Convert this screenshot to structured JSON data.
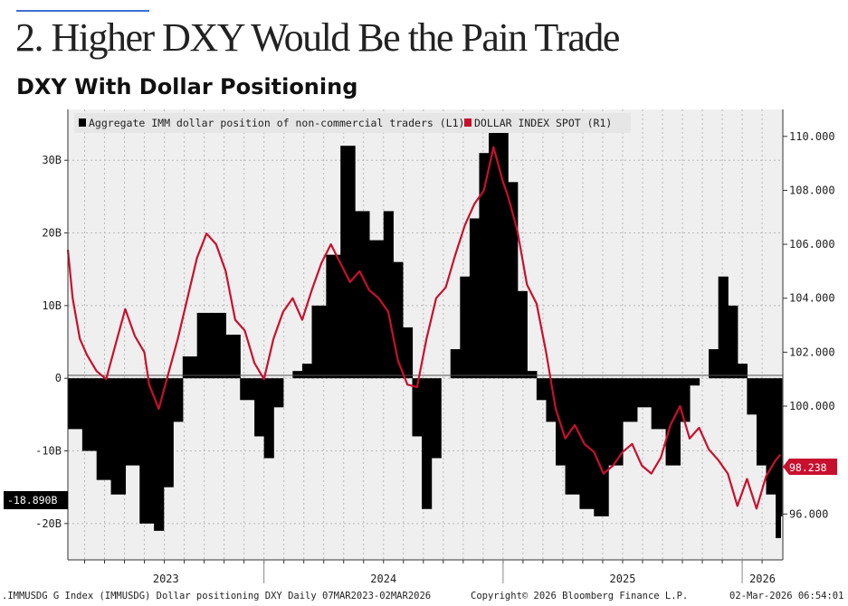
{
  "page": {
    "heading": "2. Higher DXY Would Be the Pain Trade",
    "subtitle": "DXY With Dollar Positioning"
  },
  "footer": {
    "left": ".IMMUSDG G Index (IMMUSDG) Dollar positioning DXY Daily 07MAR2023-02MAR2026",
    "copyright": "Copyright© 2026 Bloomberg Finance L.P.",
    "timestamp": "02-Mar-2026 06:54:01"
  },
  "colors": {
    "bars": "#000000",
    "line": "#c8102e",
    "background": "#efefef",
    "grid": "#b8b8b8"
  },
  "chart_data": {
    "type": "bar+line",
    "title": "DXY With Dollar Positioning",
    "x_range": [
      2023.18,
      2026.17
    ],
    "x_ticks": [
      "2023",
      "2024",
      "2025",
      "2026"
    ],
    "left_axis": {
      "range": [
        -25,
        37
      ],
      "ticks": [
        30,
        20,
        10,
        0,
        -10,
        -20
      ],
      "tick_labels": [
        "30B",
        "20B",
        "10B",
        "0",
        "-10B",
        "-20B"
      ]
    },
    "right_axis": {
      "range": [
        94.3,
        111.0
      ],
      "ticks": [
        110,
        108,
        106,
        104,
        102,
        100,
        96
      ],
      "tick_labels": [
        "110.000",
        "108.000",
        "106.000",
        "104.000",
        "102.000",
        "100.000",
        "96.000"
      ]
    },
    "legend": [
      {
        "name": "Aggregate IMM dollar position of non-commercial traders (L1)",
        "color": "#000000"
      },
      {
        "name": "DOLLAR INDEX SPOT (R1)",
        "color": "#c8102e"
      }
    ],
    "last_values": {
      "bars": -18.89,
      "bars_label": "-18.890B",
      "line": 98.238,
      "line_label": "98.238"
    },
    "series": [
      {
        "name": "Aggregate IMM dollar position of non-commercial traders (L1)",
        "axis": "left",
        "kind": "bar",
        "x": [
          2023.18,
          2023.24,
          2023.3,
          2023.36,
          2023.42,
          2023.48,
          2023.54,
          2023.58,
          2023.62,
          2023.66,
          2023.72,
          2023.78,
          2023.84,
          2023.9,
          2023.96,
          2024.0,
          2024.04,
          2024.08,
          2024.12,
          2024.16,
          2024.2,
          2024.26,
          2024.32,
          2024.38,
          2024.44,
          2024.5,
          2024.54,
          2024.58,
          2024.62,
          2024.66,
          2024.7,
          2024.74,
          2024.78,
          2024.82,
          2024.86,
          2024.9,
          2024.94,
          2024.98,
          2025.02,
          2025.06,
          2025.1,
          2025.14,
          2025.18,
          2025.22,
          2025.26,
          2025.32,
          2025.38,
          2025.44,
          2025.5,
          2025.56,
          2025.62,
          2025.68,
          2025.74,
          2025.78,
          2025.82,
          2025.86,
          2025.9,
          2025.94,
          2025.98,
          2026.02,
          2026.06,
          2026.1,
          2026.14,
          2026.16
        ],
        "values": [
          -7,
          -10,
          -14,
          -16,
          -12,
          -20,
          -21,
          -15,
          -6,
          3,
          9,
          9,
          6,
          -3,
          -8,
          -11,
          -4,
          0,
          1,
          2,
          10,
          17,
          32,
          23,
          19,
          23,
          16,
          7,
          -8,
          -18,
          -11,
          0,
          4,
          14,
          22,
          31,
          34,
          35,
          27,
          12,
          1,
          -3,
          -6,
          -12,
          -16,
          -18,
          -19,
          -12,
          -6,
          -4,
          -7,
          -12,
          -6,
          -1,
          0,
          4,
          14,
          10,
          2,
          -5,
          -12,
          -16,
          -22,
          -19
        ]
      },
      {
        "name": "DOLLAR INDEX SPOT (R1)",
        "axis": "right",
        "kind": "line",
        "x": [
          2023.18,
          2023.2,
          2023.23,
          2023.26,
          2023.3,
          2023.34,
          2023.38,
          2023.42,
          2023.46,
          2023.5,
          2023.52,
          2023.56,
          2023.6,
          2023.64,
          2023.68,
          2023.72,
          2023.76,
          2023.8,
          2023.84,
          2023.88,
          2023.92,
          2023.96,
          2024.0,
          2024.04,
          2024.08,
          2024.12,
          2024.16,
          2024.2,
          2024.24,
          2024.28,
          2024.32,
          2024.36,
          2024.4,
          2024.44,
          2024.48,
          2024.52,
          2024.56,
          2024.6,
          2024.64,
          2024.68,
          2024.72,
          2024.76,
          2024.8,
          2024.84,
          2024.88,
          2024.92,
          2024.96,
          2025.0,
          2025.02,
          2025.06,
          2025.1,
          2025.14,
          2025.18,
          2025.22,
          2025.26,
          2025.3,
          2025.34,
          2025.38,
          2025.42,
          2025.46,
          2025.5,
          2025.54,
          2025.58,
          2025.62,
          2025.66,
          2025.7,
          2025.74,
          2025.78,
          2025.82,
          2025.86,
          2025.9,
          2025.94,
          2025.98,
          2026.02,
          2026.06,
          2026.1,
          2026.14,
          2026.16
        ],
        "values": [
          105.8,
          104.0,
          102.5,
          101.9,
          101.3,
          101.0,
          102.3,
          103.6,
          102.6,
          102.0,
          100.8,
          99.9,
          101.2,
          102.5,
          104.0,
          105.5,
          106.4,
          106.0,
          105.0,
          103.2,
          102.8,
          101.6,
          101.0,
          102.5,
          103.5,
          104.0,
          103.2,
          104.3,
          105.3,
          106.0,
          105.3,
          104.6,
          105.0,
          104.3,
          104.0,
          103.5,
          101.7,
          100.8,
          100.7,
          102.5,
          104.0,
          104.4,
          105.6,
          106.7,
          107.5,
          108.0,
          109.6,
          108.3,
          107.8,
          106.5,
          104.5,
          103.8,
          102.0,
          99.9,
          98.8,
          99.3,
          98.6,
          98.3,
          97.5,
          97.8,
          98.3,
          98.6,
          97.8,
          97.5,
          98.1,
          99.3,
          100.0,
          98.8,
          99.2,
          98.4,
          98.0,
          97.5,
          96.3,
          97.3,
          96.2,
          97.4,
          98.0,
          98.2
        ]
      }
    ]
  }
}
